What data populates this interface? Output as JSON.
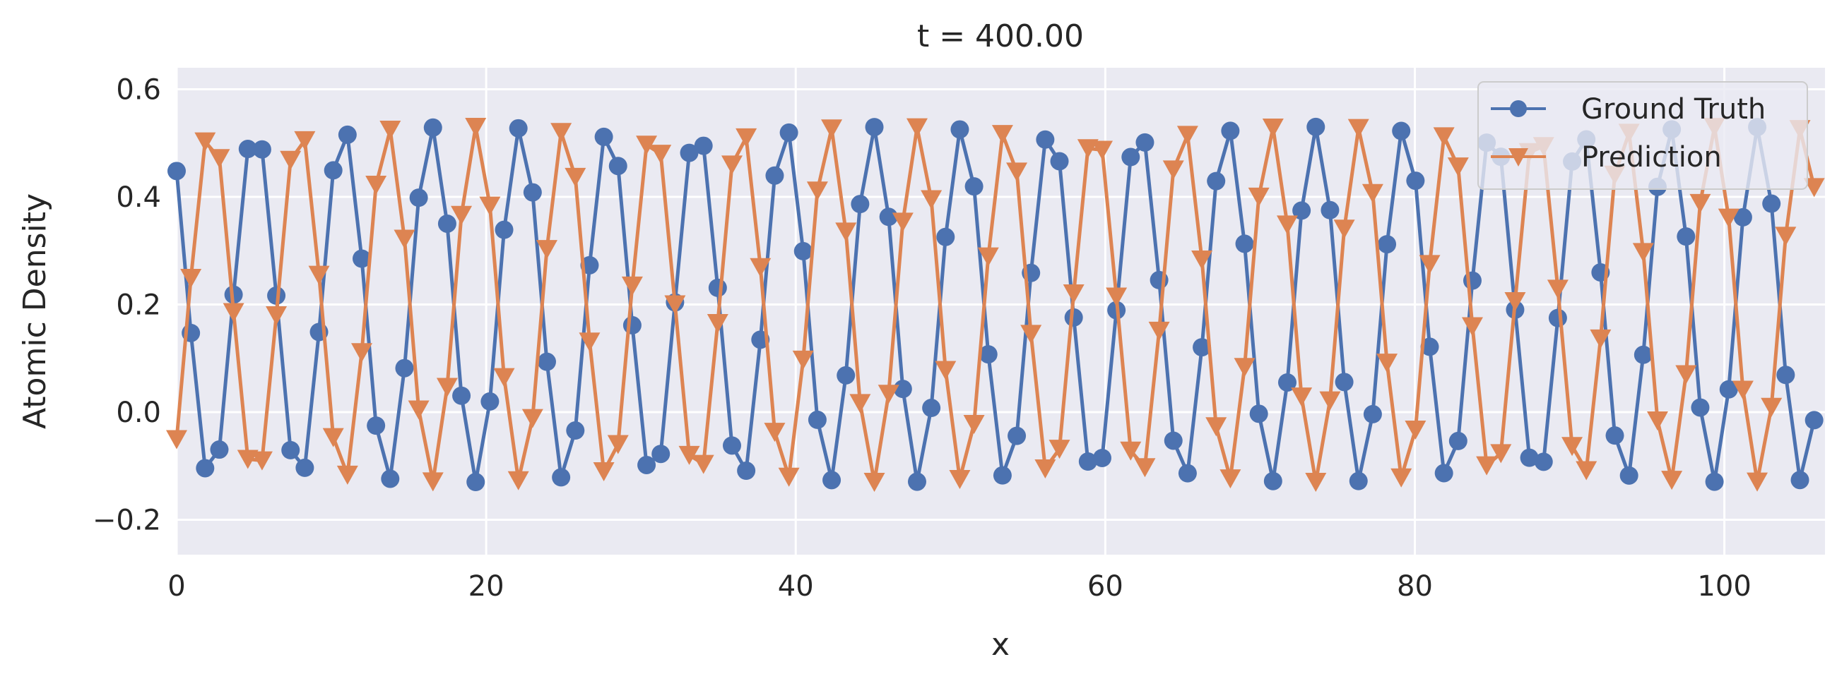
{
  "chart_data": {
    "type": "line",
    "title": "t = 400.00",
    "xlabel": "x",
    "ylabel": "Atomic Density",
    "xlim": [
      0,
      106.5
    ],
    "ylim": [
      -0.265,
      0.64
    ],
    "x_ticks": [
      0,
      20,
      40,
      60,
      80,
      100
    ],
    "x_tick_labels": [
      "0",
      "20",
      "40",
      "60",
      "80",
      "100"
    ],
    "y_ticks": [
      -0.2,
      0.0,
      0.2,
      0.4,
      0.6
    ],
    "y_tick_labels": [
      "−0.2",
      "0.0",
      "0.2",
      "0.4",
      "0.6"
    ],
    "grid": true,
    "legend_position": "top-right",
    "x_start": 0,
    "x_step": 0.92,
    "series": [
      {
        "name": "Ground Truth",
        "color": "#4c72b0",
        "marker": "circle",
        "model": {
          "form": "0.2 + 0.33*cos(k*x + phi)",
          "center": 0.2,
          "amplitude": 0.33,
          "k": 1.1,
          "phi": 0.72,
          "points": 116
        }
      },
      {
        "name": "Prediction",
        "color": "#dd8452",
        "marker": "triangle-down",
        "model": {
          "form": "0.2 + 0.33*cos(k*x + phi)",
          "center": 0.2,
          "amplitude": 0.33,
          "k": 1.1,
          "phi": 3.85,
          "points": 116
        }
      }
    ]
  }
}
